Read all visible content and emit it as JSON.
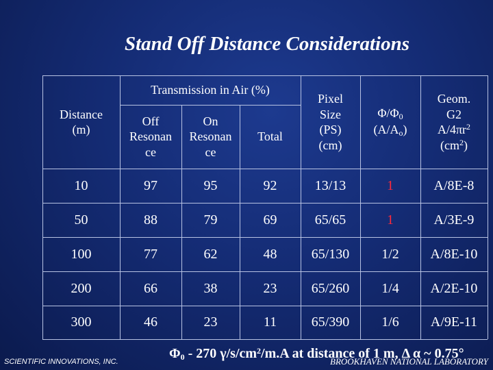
{
  "title": "Stand Off Distance Considerations",
  "header": {
    "distance": [
      "Distance",
      "(m)"
    ],
    "transmission_group": "Transmission in Air (%)",
    "off_resonance": [
      "Off",
      "Resonan",
      "ce"
    ],
    "on_resonance": [
      "On",
      "Resonan",
      "ce"
    ],
    "total": "Total",
    "pixel_size": [
      "Pixel",
      "Size",
      "(PS)",
      "(cm)"
    ],
    "phi_ratio": [
      "Φ/Φ",
      "0",
      "(A/A",
      "o",
      ")"
    ],
    "geom": [
      "Geom.",
      "G2",
      "A/4πr",
      "2",
      "(cm",
      "2",
      ")"
    ]
  },
  "rows": [
    {
      "distance": "10",
      "off": "97",
      "on": "95",
      "total": "92",
      "pixel": "13/13",
      "phi": "1",
      "geom": "A/8E-8",
      "phi_highlight": true
    },
    {
      "distance": "50",
      "off": "88",
      "on": "79",
      "total": "69",
      "pixel": "65/65",
      "phi": "1",
      "geom": "A/3E-9",
      "phi_highlight": true
    },
    {
      "distance": "100",
      "off": "77",
      "on": "62",
      "total": "48",
      "pixel": "65/130",
      "phi": "1/2",
      "geom": "A/8E-10",
      "phi_highlight": false
    },
    {
      "distance": "200",
      "off": "66",
      "on": "38",
      "total": "23",
      "pixel": "65/260",
      "phi": "1/4",
      "geom": "A/2E-10",
      "phi_highlight": false
    },
    {
      "distance": "300",
      "off": "46",
      "on": "23",
      "total": "11",
      "pixel": "65/390",
      "phi": "1/6",
      "geom": "A/9E-11",
      "phi_highlight": false
    }
  ],
  "footer": {
    "formula_phi": "Φ",
    "formula_sub": "0",
    "formula_a": " - 270 γ/s/cm",
    "formula_sup": "2",
    "formula_b": "/m.A at distance of 1 m, Δ α ~ 0.75°",
    "left_credit": "SCIENTIFIC INNOVATIONS, INC.",
    "right_credit": "BROOKHAVEN NATIONAL LABORATORY"
  },
  "colors": {
    "background": "#142b73",
    "text": "#ffffff",
    "highlight": "#ff2a3a",
    "grid": "#b8c3e3"
  }
}
